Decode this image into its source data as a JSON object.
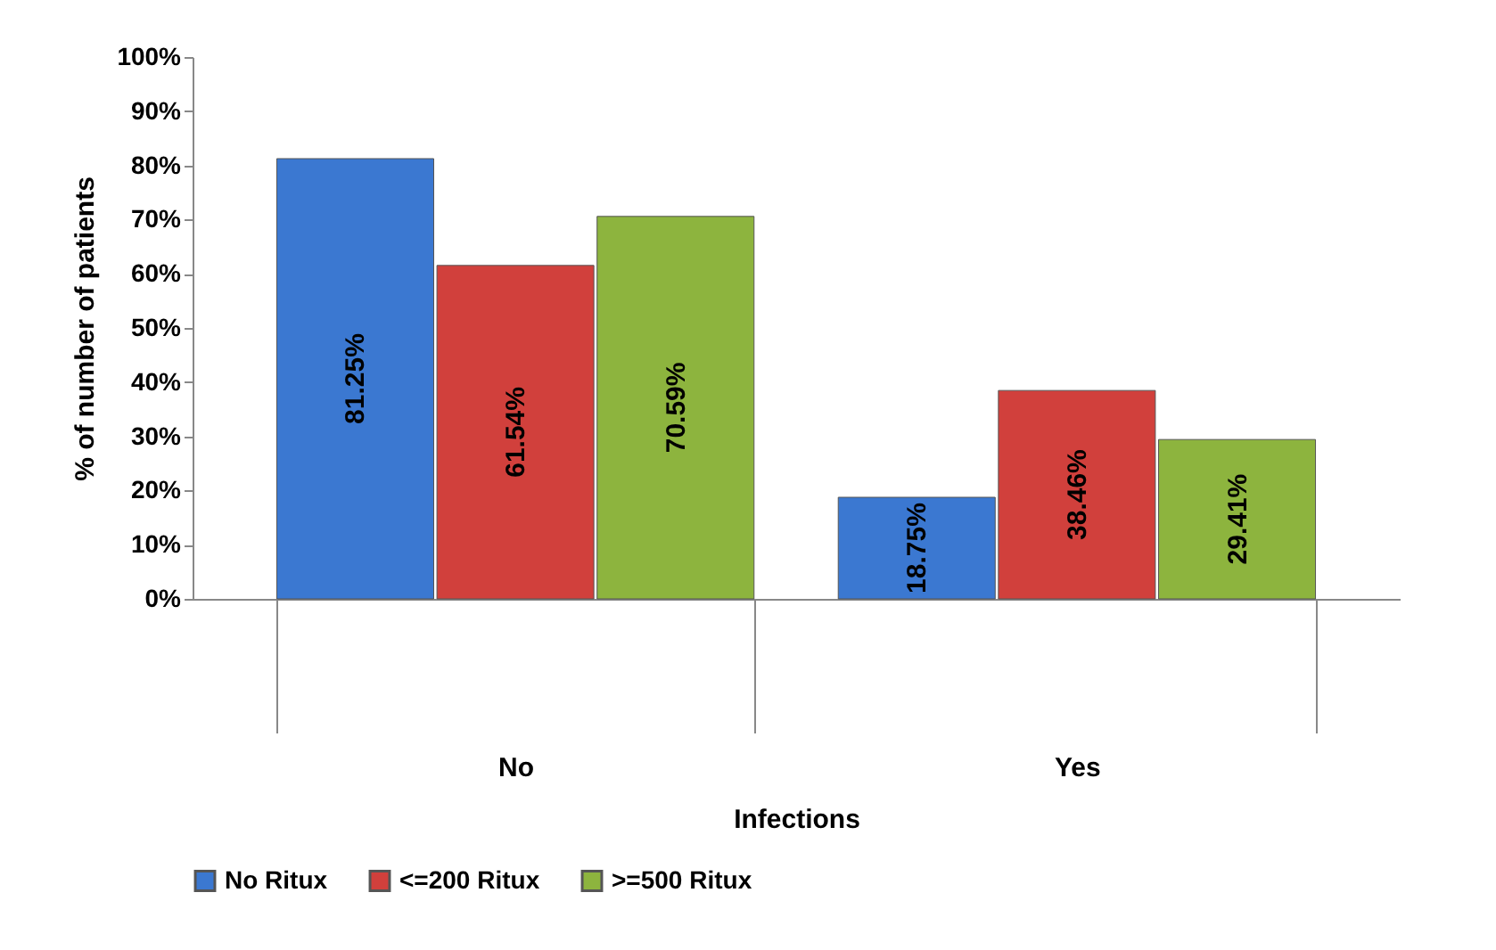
{
  "chart_data": {
    "type": "bar",
    "xlabel": "Infections",
    "ylabel": "% of number of patients",
    "categories": [
      "No",
      "Yes"
    ],
    "series": [
      {
        "name": "No Ritux",
        "color": "#3b78d1",
        "values": [
          81.25,
          18.75
        ],
        "value_labels": [
          "81.25%",
          "18.75%"
        ]
      },
      {
        "name": "<=200 Ritux",
        "color": "#d1403c",
        "values": [
          61.54,
          38.46
        ],
        "value_labels": [
          "61.54%",
          "38.46%"
        ]
      },
      {
        "name": ">=500 Ritux",
        "color": "#8db43e",
        "values": [
          70.59,
          29.41
        ],
        "value_labels": [
          "70.59%",
          "29.41%"
        ]
      }
    ],
    "ylim": [
      0,
      100
    ],
    "yticks": [
      {
        "value": 0,
        "label": "0%"
      },
      {
        "value": 10,
        "label": "10%"
      },
      {
        "value": 20,
        "label": "20%"
      },
      {
        "value": 30,
        "label": "30%"
      },
      {
        "value": 40,
        "label": "40%"
      },
      {
        "value": 50,
        "label": "50%"
      },
      {
        "value": 60,
        "label": "60%"
      },
      {
        "value": 70,
        "label": "70%"
      },
      {
        "value": 80,
        "label": "80%"
      },
      {
        "value": 90,
        "label": "90%"
      },
      {
        "value": 100,
        "label": "100%"
      }
    ],
    "grid": false,
    "legend": "bottom"
  }
}
